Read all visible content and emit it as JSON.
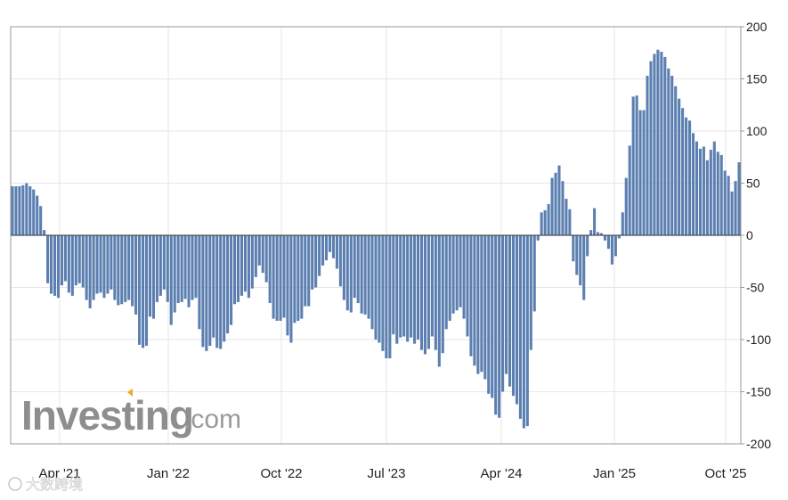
{
  "brand": {
    "name": "Investing",
    "suffix": ".com"
  },
  "watermark": "大数跨境",
  "chart_data": {
    "type": "bar",
    "ylim": [
      -200,
      200
    ],
    "yticks": [
      "200",
      "150",
      "100",
      "50",
      "0",
      "-50",
      "-100",
      "-150",
      "-200"
    ],
    "xticks": [
      "Apr '21",
      "Jan '22",
      "Oct '22",
      "Jul '23",
      "Apr '24",
      "Jan '25",
      "Oct '25"
    ],
    "grid": true,
    "bar_color": "#5b7fb0",
    "values": [
      47,
      47,
      47,
      48,
      50,
      47,
      44,
      38,
      28,
      5,
      -46,
      -56,
      -58,
      -60,
      -48,
      -44,
      -55,
      -58,
      -48,
      -46,
      -50,
      -62,
      -70,
      -62,
      -56,
      -55,
      -60,
      -56,
      -52,
      -62,
      -67,
      -66,
      -64,
      -62,
      -68,
      -76,
      -105,
      -108,
      -106,
      -78,
      -80,
      -64,
      -58,
      -52,
      -64,
      -86,
      -74,
      -65,
      -64,
      -61,
      -69,
      -62,
      -60,
      -90,
      -107,
      -111,
      -106,
      -98,
      -108,
      -109,
      -102,
      -94,
      -86,
      -66,
      -64,
      -58,
      -54,
      -60,
      -51,
      -40,
      -29,
      -36,
      -45,
      -65,
      -80,
      -82,
      -82,
      -79,
      -96,
      -103,
      -84,
      -82,
      -80,
      -68,
      -68,
      -52,
      -50,
      -39,
      -29,
      -24,
      -16,
      -22,
      -32,
      -49,
      -62,
      -72,
      -74,
      -60,
      -65,
      -75,
      -76,
      -80,
      -90,
      -100,
      -103,
      -111,
      -118,
      -118,
      -95,
      -104,
      -98,
      -97,
      -102,
      -98,
      -104,
      -100,
      -110,
      -114,
      -109,
      -97,
      -110,
      -126,
      -113,
      -90,
      -82,
      -75,
      -72,
      -69,
      -80,
      -97,
      -116,
      -125,
      -133,
      -131,
      -138,
      -152,
      -156,
      -172,
      -175,
      -150,
      -133,
      -145,
      -154,
      -162,
      -176,
      -185,
      -183,
      -110,
      -73,
      -5,
      22,
      24,
      30,
      55,
      60,
      67,
      52,
      35,
      25,
      -25,
      -38,
      -48,
      -62,
      -20,
      5,
      26,
      3,
      2,
      -5,
      -13,
      -28,
      -20,
      -3,
      22,
      55,
      86,
      133,
      134,
      120,
      120,
      153,
      167,
      174,
      178,
      176,
      171,
      160,
      153,
      143,
      131,
      122,
      113,
      110,
      98,
      90,
      83,
      85,
      72,
      82,
      90,
      80,
      77,
      62,
      57,
      42,
      52,
      70
    ]
  }
}
